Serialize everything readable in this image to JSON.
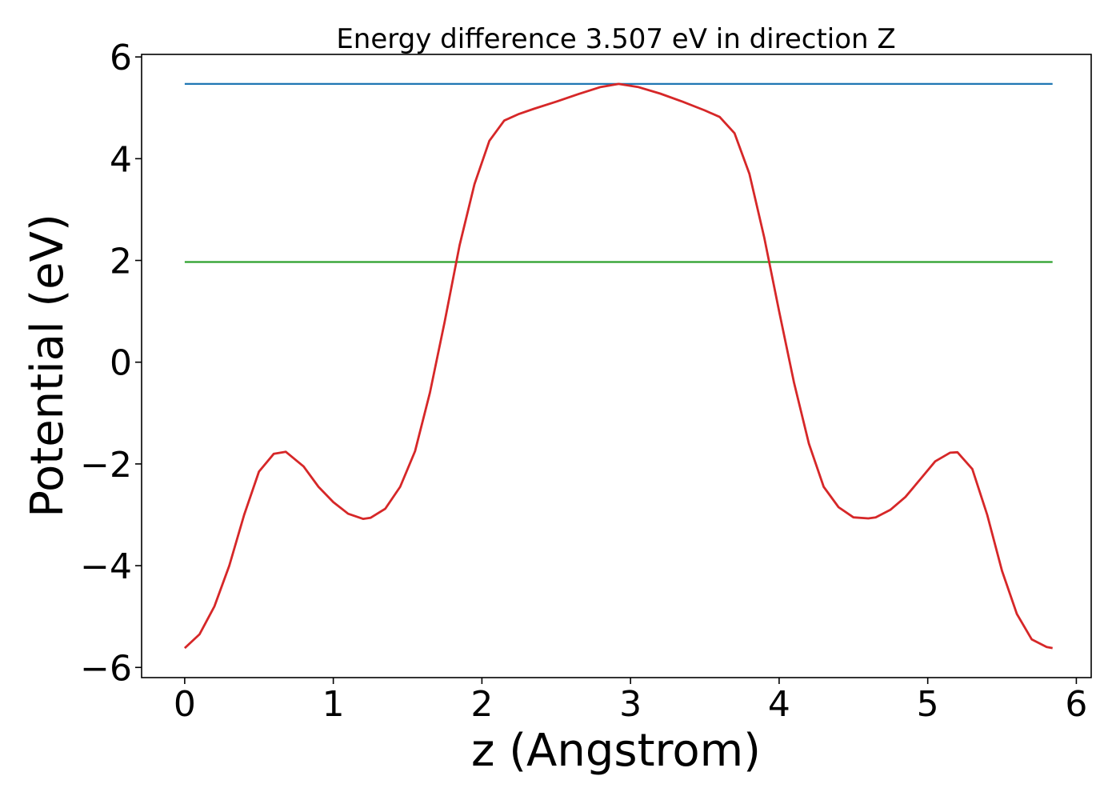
{
  "chart_data": {
    "type": "line",
    "title": "Energy difference 3.507 eV in direction Z",
    "xlabel": "z (Angstrom)",
    "ylabel": "Potential (eV)",
    "xlim": [
      -0.29,
      6.1
    ],
    "ylim": [
      -6.2,
      6.05
    ],
    "xticks": [
      0,
      1,
      2,
      3,
      4,
      5,
      6
    ],
    "xtick_labels": [
      "0",
      "1",
      "2",
      "3",
      "4",
      "5",
      "6"
    ],
    "yticks": [
      -6,
      -4,
      -2,
      0,
      2,
      4,
      6
    ],
    "ytick_labels": [
      "−6",
      "−4",
      "−2",
      "0",
      "2",
      "4",
      "6"
    ],
    "grid": false,
    "series": [
      {
        "color": "#1f77b4",
        "x": [
          0,
          5.84
        ],
        "y": [
          5.47,
          5.47
        ]
      },
      {
        "color": "#2ca02c",
        "x": [
          0,
          5.84
        ],
        "y": [
          1.97,
          1.97
        ]
      },
      {
        "color": "#d62728",
        "x": [
          0.0,
          0.1,
          0.2,
          0.3,
          0.4,
          0.5,
          0.6,
          0.68,
          0.8,
          0.9,
          1.0,
          1.1,
          1.2,
          1.25,
          1.35,
          1.45,
          1.55,
          1.65,
          1.75,
          1.85,
          1.95,
          2.05,
          2.15,
          2.25,
          2.35,
          2.5,
          2.65,
          2.8,
          2.92,
          3.05,
          3.2,
          3.35,
          3.5,
          3.6,
          3.7,
          3.8,
          3.9,
          4.0,
          4.1,
          4.2,
          4.3,
          4.4,
          4.5,
          4.6,
          4.65,
          4.75,
          4.85,
          4.95,
          5.05,
          5.15,
          5.2,
          5.3,
          5.4,
          5.5,
          5.6,
          5.7,
          5.8,
          5.84
        ],
        "y": [
          -5.62,
          -5.35,
          -4.8,
          -4.0,
          -3.0,
          -2.15,
          -1.8,
          -1.76,
          -2.05,
          -2.45,
          -2.75,
          -2.98,
          -3.08,
          -3.06,
          -2.88,
          -2.45,
          -1.75,
          -0.6,
          0.8,
          2.3,
          3.5,
          4.35,
          4.75,
          4.88,
          4.98,
          5.12,
          5.27,
          5.41,
          5.47,
          5.41,
          5.28,
          5.12,
          4.95,
          4.82,
          4.5,
          3.7,
          2.45,
          1.0,
          -0.4,
          -1.6,
          -2.45,
          -2.85,
          -3.05,
          -3.07,
          -3.05,
          -2.9,
          -2.65,
          -2.3,
          -1.95,
          -1.78,
          -1.77,
          -2.1,
          -3.0,
          -4.1,
          -4.95,
          -5.45,
          -5.6,
          -5.62
        ]
      }
    ]
  }
}
